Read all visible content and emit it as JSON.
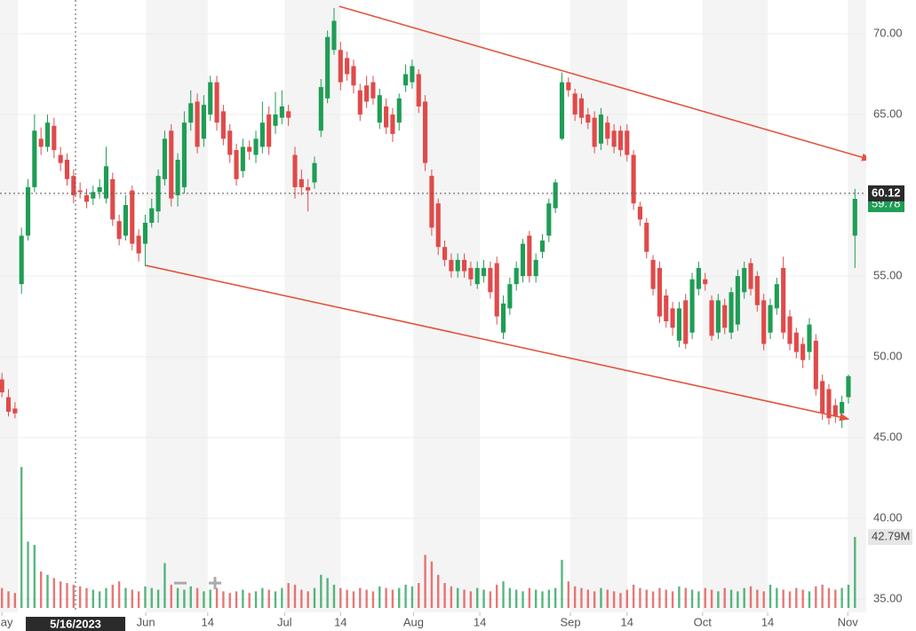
{
  "chart_data": {
    "type": "candlestick",
    "up_color": "#1f9d55",
    "down_color": "#e04a4a",
    "grid": true,
    "xlim": [
      -0.3,
      134.1
    ],
    "ylim": [
      34.18,
      72.09
    ],
    "yticks": [
      {
        "value": 35,
        "label": "35.00"
      },
      {
        "value": 40,
        "label": "40.00"
      },
      {
        "value": 45,
        "label": "45.00"
      },
      {
        "value": 50,
        "label": "50.00"
      },
      {
        "value": 55,
        "label": "55.00"
      },
      {
        "value": 60,
        "label": "60.00"
      },
      {
        "value": 65,
        "label": "65.00"
      },
      {
        "value": 70,
        "label": "70.00"
      }
    ],
    "xticks": [
      {
        "value": 0,
        "label": "May"
      },
      {
        "value": 22.1,
        "label": "Jun"
      },
      {
        "value": 31.6,
        "label": "14"
      },
      {
        "value": 43.4,
        "label": "Jul"
      },
      {
        "value": 52,
        "label": "14"
      },
      {
        "value": 63.2,
        "label": "Aug"
      },
      {
        "value": 73.4,
        "label": "14"
      },
      {
        "value": 87.3,
        "label": "Sep"
      },
      {
        "value": 96,
        "label": "14"
      },
      {
        "value": 107.6,
        "label": "Oct"
      },
      {
        "value": 117.6,
        "label": "14"
      },
      {
        "value": 129.9,
        "label": "Nov"
      }
    ],
    "open": [
      48.6,
      47.5,
      46.8,
      54.5,
      57.5,
      60.5,
      63.5,
      63.0,
      64.3,
      62.5,
      62.2,
      61.2,
      60.3,
      60.0,
      59.8,
      60.2,
      59.8,
      61.0,
      58.4,
      57.5,
      60.3,
      57.5,
      57.0,
      58.3,
      59.0,
      61.0,
      64.0,
      60.0,
      60.5,
      64.5,
      65.8,
      63.5,
      65.0,
      67.0,
      65.2,
      64.0,
      62.8,
      61.5,
      63.0,
      62.5,
      63.0,
      65.0,
      64.3,
      64.8,
      65.2,
      62.5,
      61.0,
      60.5,
      60.8,
      64.0,
      66.0,
      69.0,
      69.0,
      68.5,
      68.0,
      66.5,
      66.8,
      67.0,
      64.5,
      65.5,
      65.0,
      64.5,
      66.8,
      67.0,
      67.5,
      65.8,
      61.2,
      59.5,
      56.8,
      56.0,
      55.3,
      56.0,
      55.5,
      54.5,
      55.0,
      55.5,
      55.8,
      51.5,
      53.0,
      54.5,
      55.0,
      57.5,
      55.0,
      56.5,
      57.5,
      59.2,
      63.5,
      67.0,
      66.3,
      66.0,
      65.0,
      64.8,
      63.2,
      64.5,
      64.0,
      64.0,
      64.0,
      62.5,
      59.3,
      58.3,
      56.0,
      55.5,
      53.8,
      53.0,
      51.0,
      53.5,
      51.5,
      54.2,
      54.8,
      53.5,
      51.5,
      53.2,
      51.5,
      52.0,
      54.0,
      55.8,
      55.0,
      53.5,
      51.5,
      53.0,
      55.5,
      52.5,
      51.5,
      50.8,
      50.3,
      51.0,
      48.5,
      48.0,
      47.0,
      46.5,
      47.5,
      57.5
    ],
    "high": [
      49.0,
      48.0,
      47.2,
      58.0,
      61.0,
      65.0,
      64.2,
      65.0,
      64.8,
      63.0,
      62.6,
      61.6,
      60.8,
      60.4,
      60.6,
      61.0,
      63.0,
      61.4,
      58.8,
      60.0,
      60.6,
      57.9,
      58.8,
      59.8,
      61.6,
      64.0,
      64.4,
      62.6,
      65.2,
      66.5,
      66.3,
      66.2,
      67.4,
      67.4,
      65.6,
      64.4,
      63.2,
      63.5,
      63.4,
      64.0,
      65.8,
      65.5,
      66.4,
      66.5,
      65.6,
      63.0,
      61.6,
      61.0,
      62.4,
      67.2,
      70.2,
      71.6,
      69.5,
      68.9,
      68.4,
      66.9,
      67.4,
      67.4,
      66.6,
      66.0,
      65.4,
      66.3,
      68.1,
      68.4,
      67.8,
      66.2,
      61.6,
      59.8,
      57.2,
      56.4,
      56.4,
      56.4,
      55.9,
      55.9,
      56.0,
      55.9,
      56.2,
      53.8,
      54.9,
      55.9,
      57.3,
      57.8,
      56.4,
      57.6,
      59.8,
      61.0,
      67.6,
      67.3,
      66.6,
      66.3,
      65.4,
      65.2,
      65.4,
      64.9,
      64.4,
      64.3,
      64.4,
      62.8,
      59.6,
      58.6,
      56.3,
      55.9,
      54.2,
      53.4,
      53.4,
      53.9,
      55.2,
      55.9,
      55.2,
      53.8,
      53.9,
      53.6,
      54.3,
      55.4,
      55.9,
      56.1,
      55.3,
      53.9,
      53.6,
      54.9,
      56.2,
      52.9,
      51.8,
      51.2,
      52.4,
      51.4,
      48.9,
      48.3,
      47.4,
      47.6,
      48.9,
      60.4
    ],
    "low": [
      47.5,
      46.3,
      46.2,
      53.9,
      57.2,
      60.2,
      62.5,
      62.7,
      62.3,
      61.5,
      60.6,
      59.5,
      59.8,
      59.2,
      59.4,
      59.8,
      59.5,
      58.1,
      56.9,
      57.2,
      56.6,
      55.9,
      55.6,
      58.0,
      58.3,
      60.6,
      59.3,
      59.3,
      60.1,
      64.0,
      62.6,
      63.0,
      64.6,
      64.0,
      63.1,
      62.0,
      60.6,
      61.1,
      62.2,
      62.0,
      62.6,
      62.5,
      63.8,
      64.4,
      64.3,
      59.8,
      60.0,
      59.0,
      60.4,
      63.6,
      65.7,
      68.7,
      66.5,
      67.1,
      66.3,
      64.6,
      65.4,
      65.6,
      64.1,
      63.8,
      63.3,
      64.0,
      66.4,
      66.6,
      65.1,
      61.5,
      57.5,
      56.3,
      55.6,
      54.9,
      54.9,
      54.9,
      54.4,
      54.2,
      54.6,
      53.6,
      52.0,
      51.1,
      52.6,
      54.1,
      54.6,
      54.6,
      54.6,
      56.1,
      57.1,
      58.9,
      63.4,
      66.1,
      64.6,
      64.4,
      64.1,
      62.6,
      62.8,
      63.1,
      62.6,
      62.4,
      62.1,
      59.1,
      58.1,
      56.1,
      53.8,
      52.1,
      51.8,
      51.3,
      50.6,
      50.5,
      51.1,
      53.8,
      54.1,
      51.0,
      51.1,
      51.4,
      51.1,
      51.6,
      53.6,
      53.8,
      52.8,
      50.4,
      51.1,
      52.6,
      51.1,
      50.4,
      49.9,
      49.3,
      49.8,
      47.6,
      46.1,
      45.8,
      45.9,
      45.6,
      47.1,
      55.5
    ],
    "close": [
      47.8,
      46.6,
      46.5,
      57.5,
      60.5,
      64.0,
      63.0,
      64.5,
      62.8,
      62.0,
      61.0,
      60.0,
      60.2,
      59.6,
      60.2,
      60.5,
      61.8,
      58.5,
      57.3,
      59.4,
      57.0,
      56.4,
      58.3,
      59.2,
      61.2,
      63.5,
      59.8,
      62.2,
      64.5,
      65.7,
      63.0,
      65.6,
      67.0,
      64.5,
      63.5,
      62.5,
      61.0,
      63.0,
      62.7,
      63.5,
      64.5,
      63.0,
      65.0,
      65.5,
      64.8,
      60.5,
      60.5,
      60.3,
      62.0,
      66.7,
      69.8,
      70.8,
      67.0,
      67.5,
      66.8,
      65.0,
      65.8,
      66.0,
      66.2,
      64.2,
      63.8,
      66.0,
      67.5,
      68.0,
      65.5,
      62.0,
      58.0,
      56.8,
      56.0,
      55.3,
      56.0,
      55.3,
      54.8,
      55.5,
      55.5,
      54.0,
      52.5,
      53.3,
      54.5,
      55.5,
      57.0,
      55.0,
      56.0,
      57.2,
      59.5,
      60.8,
      67.0,
      66.5,
      65.0,
      64.8,
      64.5,
      63.0,
      65.0,
      63.5,
      63.0,
      62.8,
      62.5,
      59.5,
      58.5,
      56.5,
      54.2,
      52.5,
      52.2,
      51.8,
      53.0,
      50.8,
      54.8,
      55.5,
      54.5,
      51.3,
      53.5,
      51.8,
      54.0,
      55.0,
      55.5,
      54.2,
      53.2,
      50.8,
      53.2,
      54.5,
      51.5,
      50.8,
      50.3,
      49.8,
      52.0,
      48.0,
      46.5,
      46.2,
      46.3,
      47.2,
      48.8,
      59.78
    ],
    "volume": [
      12,
      10,
      9,
      85,
      40,
      38,
      22,
      20,
      18,
      16,
      15,
      14,
      13,
      12,
      11,
      10,
      12,
      14,
      16,
      12,
      11,
      10,
      13,
      12,
      11,
      27,
      14,
      12,
      11,
      13,
      12,
      10,
      11,
      12,
      10,
      9,
      10,
      11,
      9,
      10,
      12,
      11,
      10,
      12,
      15,
      14,
      11,
      10,
      12,
      20,
      18,
      14,
      12,
      11,
      10,
      12,
      11,
      10,
      13,
      12,
      11,
      12,
      14,
      13,
      15,
      32,
      28,
      20,
      15,
      13,
      12,
      11,
      10,
      12,
      11,
      10,
      14,
      16,
      12,
      11,
      10,
      12,
      11,
      10,
      11,
      12,
      29,
      16,
      13,
      12,
      11,
      10,
      12,
      11,
      10,
      9,
      11,
      14,
      12,
      11,
      10,
      12,
      11,
      10,
      13,
      12,
      11,
      10,
      12,
      11,
      10,
      12,
      11,
      10,
      12,
      13,
      11,
      10,
      14,
      12,
      11,
      10,
      12,
      11,
      10,
      13,
      14,
      12,
      11,
      12,
      14,
      42.79
    ],
    "volume_lim": [
      0,
      91
    ],
    "last_volume_label": "42.79M",
    "crosshair": {
      "x": 11.3,
      "x_label": "5/16/2023",
      "y": 60.12
    },
    "trendline_color": "#e5533d",
    "trendlines": [
      {
        "x": [
          51.8,
          133.7
        ],
        "y": [
          71.7,
          62.2
        ]
      },
      {
        "x": [
          22.1,
          130.3
        ],
        "y": [
          55.66,
          46.15
        ]
      }
    ]
  }
}
